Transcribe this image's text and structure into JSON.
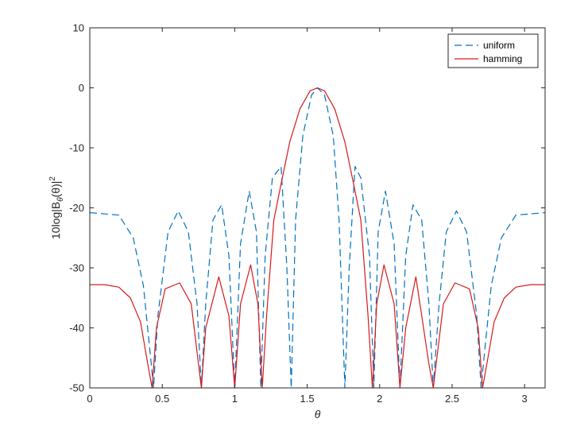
{
  "chart_data": {
    "type": "line",
    "xlabel": "θ",
    "ylabel_main": "10log|B",
    "ylabel_sub": "θ",
    "ylabel_paren": "(θ)|",
    "ylabel_sup": "2",
    "xlim": [
      0,
      3.1416
    ],
    "ylim": [
      -50,
      10
    ],
    "xticks": [
      0,
      0.5,
      1,
      1.5,
      2,
      2.5,
      3
    ],
    "xtick_labels": [
      "0",
      "0.5",
      "1",
      "1.5",
      "2",
      "2.5",
      "3"
    ],
    "yticks": [
      10,
      0,
      -10,
      -20,
      -30,
      -40,
      -50
    ],
    "ytick_labels": [
      "10",
      "0",
      "-10",
      "-20",
      "-30",
      "-40",
      "-50"
    ],
    "grid": false,
    "legend": "top-right",
    "series": [
      {
        "name": "uniform",
        "color": "#0072BD",
        "style": "dashed",
        "x": [
          0,
          0.2,
          0.3,
          0.37,
          0.42,
          0.44,
          0.47,
          0.54,
          0.61,
          0.68,
          0.74,
          0.77,
          0.8,
          0.85,
          0.91,
          0.96,
          1.0,
          1.04,
          1.1,
          1.15,
          1.18,
          1.21,
          1.26,
          1.32,
          1.36,
          1.39,
          1.42,
          1.47,
          1.53,
          1.5708,
          1.62,
          1.68,
          1.72,
          1.76,
          1.79,
          1.83,
          1.87,
          1.93,
          1.96,
          1.99,
          2.04,
          2.1,
          2.14,
          2.18,
          2.23,
          2.29,
          2.34,
          2.37,
          2.41,
          2.46,
          2.53,
          2.6,
          2.67,
          2.7,
          2.72,
          2.77,
          2.84,
          2.94,
          3.1416
        ],
        "y": [
          -20.8,
          -21.2,
          -25,
          -33,
          -45,
          -50,
          -38,
          -24,
          -20.5,
          -24,
          -36,
          -50,
          -36,
          -22,
          -19.5,
          -28,
          -50,
          -26,
          -17.2,
          -24,
          -50,
          -28,
          -15,
          -13.1,
          -30,
          -50,
          -22,
          -8,
          -1.2,
          0,
          -1.2,
          -8,
          -22,
          -50,
          -30,
          -13.1,
          -15,
          -28,
          -50,
          -24,
          -17.2,
          -26,
          -50,
          -28,
          -19.5,
          -22,
          -36,
          -50,
          -36,
          -24,
          -20.5,
          -24,
          -38,
          -50,
          -45,
          -33,
          -25,
          -21.2,
          -20.8
        ]
      },
      {
        "name": "hamming",
        "color": "#D7191C",
        "style": "solid",
        "x": [
          0,
          0.1,
          0.2,
          0.28,
          0.35,
          0.4,
          0.43,
          0.46,
          0.52,
          0.62,
          0.7,
          0.75,
          0.77,
          0.8,
          0.89,
          0.96,
          1.0,
          1.04,
          1.11,
          1.16,
          1.19,
          1.22,
          1.27,
          1.32,
          1.38,
          1.45,
          1.52,
          1.5708,
          1.62,
          1.69,
          1.76,
          1.82,
          1.87,
          1.92,
          1.95,
          1.98,
          2.03,
          2.1,
          2.14,
          2.18,
          2.25,
          2.34,
          2.37,
          2.39,
          2.44,
          2.52,
          2.62,
          2.68,
          2.71,
          2.74,
          2.79,
          2.86,
          2.94,
          3.04,
          3.1416
        ],
        "y": [
          -32.8,
          -32.8,
          -33.2,
          -35,
          -39,
          -46,
          -50,
          -40,
          -33.5,
          -32.5,
          -36,
          -46,
          -50,
          -40,
          -31.5,
          -38,
          -50,
          -36,
          -29.5,
          -36,
          -50,
          -38,
          -22,
          -16,
          -9,
          -3.5,
          -0.5,
          0,
          -0.5,
          -3.5,
          -9,
          -16,
          -22,
          -38,
          -50,
          -36,
          -29.5,
          -36,
          -50,
          -40,
          -31.5,
          -46,
          -50,
          -46,
          -36,
          -32.5,
          -33.5,
          -40,
          -50,
          -46,
          -39,
          -35,
          -33.2,
          -32.8,
          -32.8
        ]
      }
    ]
  }
}
